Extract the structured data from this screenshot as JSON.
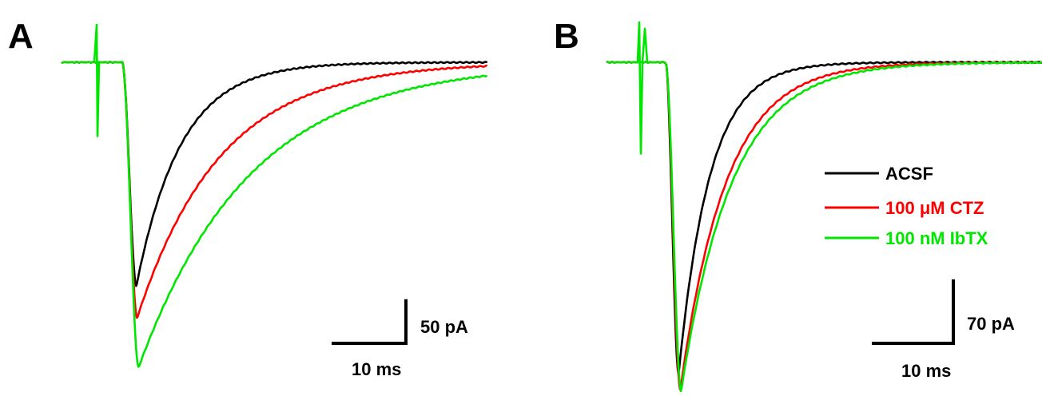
{
  "chart_data": [
    {
      "type": "line",
      "panel": "A",
      "xunit": "ms",
      "yunit": "pA",
      "scalebar": {
        "x_value": 10,
        "x_label": "10 ms",
        "y_value": 50,
        "y_label": "50 pA"
      },
      "series": [
        {
          "color": "#000000",
          "baseline": 0,
          "peak": -203,
          "peak_time": 1.7,
          "rise_time": 1.9,
          "decay_tau": 6.0,
          "end_time": 49
        },
        {
          "color": "#ff0000",
          "baseline": 0,
          "peak": -232,
          "peak_time": 1.8,
          "rise_time": 2.0,
          "decay_tau": 11.2,
          "end_time": 49
        },
        {
          "color": "#00e600",
          "baseline": 0,
          "peak": -277,
          "peak_time": 2.1,
          "rise_time": 2.2,
          "decay_tau": 15.0,
          "end_time": 49
        }
      ],
      "stim_artifact": {
        "color": "#00e600",
        "up": 34,
        "down": -67
      }
    },
    {
      "type": "line",
      "panel": "B",
      "xunit": "ms",
      "yunit": "pA",
      "scalebar": {
        "x_value": 10,
        "x_label": "10 ms",
        "y_value": 70,
        "y_label": "70 pA"
      },
      "legend": [
        {
          "label": "ACSF",
          "color": "#000000"
        },
        {
          "label": "100 μM CTZ",
          "color": "#ff0000"
        },
        {
          "label": "100 nM IbTX",
          "color": "#00e600"
        }
      ],
      "series": [
        {
          "color": "#000000",
          "baseline": 0,
          "peak": -273,
          "peak_time": 1.3,
          "rise_time": 1.6,
          "decay_tau": 3.8,
          "end_time": 49
        },
        {
          "color": "#ff0000",
          "baseline": 0,
          "peak": -287,
          "peak_time": 1.6,
          "rise_time": 1.8,
          "decay_tau": 5.6,
          "end_time": 49
        },
        {
          "color": "#00e600",
          "baseline": 0,
          "peak": -288,
          "peak_time": 1.7,
          "rise_time": 1.9,
          "decay_tau": 6.2,
          "end_time": 49
        }
      ],
      "stim_artifact": {
        "color": "#00e600",
        "up": 35,
        "down": -80
      }
    }
  ],
  "labels": {
    "panel_a": "A",
    "panel_b": "B"
  }
}
